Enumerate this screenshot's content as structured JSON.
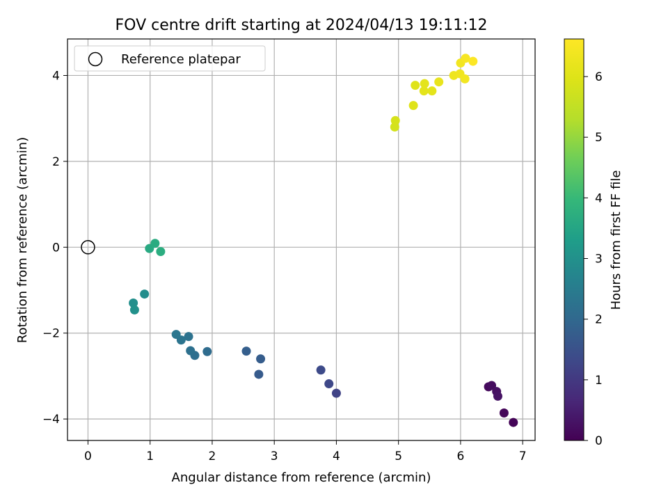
{
  "chart_data": {
    "type": "scatter",
    "title": "FOV centre drift starting at 2024/04/13 19:11:12",
    "xlabel": "Angular distance from reference (arcmin)",
    "ylabel": "Rotation from reference (arcmin)",
    "xlim": [
      -0.33,
      7.2
    ],
    "ylim": [
      -4.5,
      4.85
    ],
    "xticks": [
      0,
      1,
      2,
      3,
      4,
      5,
      6,
      7
    ],
    "yticks": [
      -4,
      -2,
      0,
      2,
      4
    ],
    "xtick_labels": [
      "0",
      "1",
      "2",
      "3",
      "4",
      "5",
      "6",
      "7"
    ],
    "ytick_labels": [
      "−4",
      "−2",
      "0",
      "2",
      "4"
    ],
    "grid": true,
    "legend": {
      "position": "top-left",
      "entries": [
        {
          "label": "Reference platepar",
          "marker": "open-circle"
        }
      ]
    },
    "reference_point": {
      "x": 0,
      "y": 0
    },
    "colormap": "viridis",
    "colorbar": {
      "label": "Hours from first FF file",
      "range": [
        0,
        6.62
      ],
      "ticks": [
        0,
        1,
        2,
        3,
        4,
        5,
        6
      ],
      "tick_labels": [
        "0",
        "1",
        "2",
        "3",
        "4",
        "5",
        "6"
      ]
    },
    "points": [
      {
        "x": 6.85,
        "y": -4.08,
        "c": 0.05
      },
      {
        "x": 6.7,
        "y": -3.86,
        "c": 0.1
      },
      {
        "x": 6.45,
        "y": -3.25,
        "c": 0.15
      },
      {
        "x": 6.5,
        "y": -3.22,
        "c": 0.2
      },
      {
        "x": 6.58,
        "y": -3.36,
        "c": 0.25
      },
      {
        "x": 6.6,
        "y": -3.47,
        "c": 0.3
      },
      {
        "x": 4.0,
        "y": -3.4,
        "c": 1.2
      },
      {
        "x": 3.88,
        "y": -3.18,
        "c": 1.3
      },
      {
        "x": 3.75,
        "y": -2.86,
        "c": 1.35
      },
      {
        "x": 2.75,
        "y": -2.96,
        "c": 1.7
      },
      {
        "x": 2.78,
        "y": -2.6,
        "c": 1.75
      },
      {
        "x": 2.55,
        "y": -2.42,
        "c": 1.8
      },
      {
        "x": 1.92,
        "y": -2.43,
        "c": 2.1
      },
      {
        "x": 1.72,
        "y": -2.52,
        "c": 2.15
      },
      {
        "x": 1.65,
        "y": -2.41,
        "c": 2.2
      },
      {
        "x": 1.62,
        "y": -2.08,
        "c": 2.25
      },
      {
        "x": 1.5,
        "y": -2.16,
        "c": 2.3
      },
      {
        "x": 1.42,
        "y": -2.03,
        "c": 2.35
      },
      {
        "x": 0.91,
        "y": -1.09,
        "c": 2.9
      },
      {
        "x": 0.73,
        "y": -1.3,
        "c": 2.95
      },
      {
        "x": 0.75,
        "y": -1.46,
        "c": 3.0
      },
      {
        "x": 0.99,
        "y": -0.03,
        "c": 3.6
      },
      {
        "x": 1.08,
        "y": 0.09,
        "c": 3.65
      },
      {
        "x": 1.17,
        "y": -0.1,
        "c": 3.7
      },
      {
        "x": 4.94,
        "y": 2.8,
        "c": 5.8
      },
      {
        "x": 4.95,
        "y": 2.95,
        "c": 5.85
      },
      {
        "x": 5.24,
        "y": 3.3,
        "c": 6.0
      },
      {
        "x": 5.27,
        "y": 3.77,
        "c": 6.0
      },
      {
        "x": 5.41,
        "y": 3.64,
        "c": 6.1
      },
      {
        "x": 5.42,
        "y": 3.81,
        "c": 6.1
      },
      {
        "x": 5.54,
        "y": 3.64,
        "c": 6.1
      },
      {
        "x": 5.65,
        "y": 3.85,
        "c": 6.2
      },
      {
        "x": 5.89,
        "y": 4.0,
        "c": 6.3
      },
      {
        "x": 5.99,
        "y": 4.04,
        "c": 6.35
      },
      {
        "x": 6.0,
        "y": 4.29,
        "c": 6.4
      },
      {
        "x": 6.07,
        "y": 3.92,
        "c": 6.4
      },
      {
        "x": 6.08,
        "y": 4.4,
        "c": 6.5
      },
      {
        "x": 6.2,
        "y": 4.33,
        "c": 6.6
      }
    ]
  }
}
